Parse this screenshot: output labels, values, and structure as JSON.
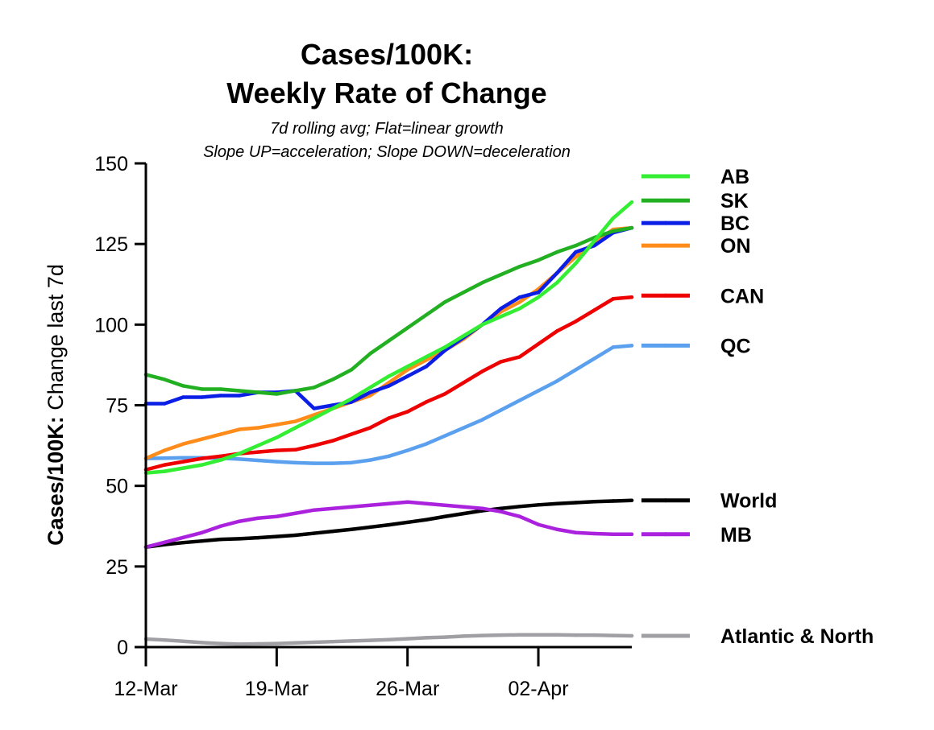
{
  "chart_data": {
    "type": "line",
    "title_line1": "Cases/100K:",
    "title_line2": "Weekly Rate of Change",
    "subtitle_line1": "7d rolling avg; Flat=linear growth",
    "subtitle_line2": "Slope UP=acceleration; Slope DOWN=deceleration",
    "ylabel_bold": "Cases/100K:",
    "ylabel_rest": " Change last 7d",
    "xlabel": "",
    "ylim": [
      0,
      150
    ],
    "y_ticks": [
      0,
      25,
      50,
      75,
      100,
      125,
      150
    ],
    "x_range": [
      0,
      26
    ],
    "x_ticks": [
      {
        "pos": 0,
        "label": "12-Mar"
      },
      {
        "pos": 7,
        "label": "19-Mar"
      },
      {
        "pos": 14,
        "label": "26-Mar"
      },
      {
        "pos": 21,
        "label": "02-Apr"
      }
    ],
    "series": [
      {
        "name": "Atlantic & North",
        "color": "#a0a0a4",
        "legend_value": 3.5,
        "legend_label_value": 3.5,
        "values": [
          2.5,
          2.2,
          1.8,
          1.4,
          1.1,
          0.9,
          1.0,
          1.1,
          1.3,
          1.5,
          1.7,
          1.9,
          2.1,
          2.3,
          2.6,
          2.9,
          3.1,
          3.4,
          3.6,
          3.7,
          3.8,
          3.8,
          3.8,
          3.7,
          3.7,
          3.6,
          3.5
        ]
      },
      {
        "name": "World",
        "color": "#000000",
        "legend_value": 45.5,
        "legend_label_value": 45.5,
        "values": [
          31,
          31.8,
          32.4,
          32.9,
          33.4,
          33.6,
          33.9,
          34.3,
          34.7,
          35.3,
          35.9,
          36.5,
          37.2,
          37.9,
          38.7,
          39.5,
          40.5,
          41.4,
          42.3,
          43.0,
          43.6,
          44.1,
          44.5,
          44.8,
          45.1,
          45.3,
          45.5
        ]
      },
      {
        "name": "MB",
        "color": "#aa22dd",
        "legend_value": 35,
        "legend_label_value": 35,
        "values": [
          31,
          32.5,
          34,
          35.5,
          37.5,
          39,
          40,
          40.5,
          41.5,
          42.5,
          43,
          43.5,
          44,
          44.5,
          45,
          44.5,
          44,
          43.5,
          43,
          42,
          40.5,
          38,
          36.5,
          35.5,
          35.2,
          35,
          35
        ]
      },
      {
        "name": "QC",
        "color": "#5aa0ee",
        "legend_value": 93.5,
        "legend_label_value": 93.5,
        "values": [
          58.5,
          58.6,
          58.7,
          58.7,
          58.6,
          58.3,
          57.9,
          57.5,
          57.2,
          57.0,
          57.0,
          57.2,
          58,
          59.2,
          61,
          63,
          65.5,
          68,
          70.5,
          73.5,
          76.5,
          79.5,
          82.5,
          86,
          89.5,
          93,
          93.5
        ]
      },
      {
        "name": "CAN",
        "color": "#ee0000",
        "legend_value": 109,
        "legend_label_value": 109,
        "values": [
          55,
          56.5,
          57.5,
          58.5,
          59.2,
          60,
          60.5,
          61,
          61.2,
          62.5,
          64,
          66,
          68,
          71,
          73,
          76,
          78.5,
          82,
          85.5,
          88.5,
          90,
          94,
          98,
          101,
          104.5,
          108,
          108.5
        ]
      },
      {
        "name": "ON",
        "color": "#ff8c1a",
        "legend_value": 124.5,
        "legend_label_value": 124.5,
        "values": [
          58.5,
          61,
          63,
          64.5,
          66,
          67.5,
          68,
          69,
          70,
          72,
          74,
          76,
          78,
          82,
          86,
          89,
          92,
          95.5,
          100,
          104,
          107,
          111,
          116,
          121,
          125.5,
          129.5,
          130
        ]
      },
      {
        "name": "BC",
        "color": "#0a1ee6",
        "legend_value": 131.5,
        "legend_label_value": 131.5,
        "values": [
          75.5,
          75.5,
          77.5,
          77.5,
          78,
          78,
          79,
          79,
          79.5,
          74,
          75,
          76,
          79,
          81,
          84,
          87,
          92,
          96,
          100,
          105,
          108.5,
          110,
          116,
          122.5,
          124.5,
          128.5,
          130
        ]
      },
      {
        "name": "SK",
        "color": "#22b022",
        "legend_value": 138.5,
        "legend_label_value": 138.5,
        "values": [
          84.5,
          83,
          81,
          80,
          80,
          79.5,
          79,
          78.5,
          79.5,
          80.5,
          83,
          86,
          91,
          95,
          99,
          103,
          107,
          110,
          113,
          115.5,
          118,
          120,
          122.5,
          124.5,
          127,
          129,
          130
        ]
      },
      {
        "name": "AB",
        "color": "#33ee33",
        "legend_value": 146,
        "legend_label_value": 146,
        "values": [
          54,
          54.5,
          55.5,
          56.5,
          58,
          60,
          62.5,
          65,
          68,
          71,
          74,
          77,
          80.5,
          84,
          87,
          90,
          93,
          96.5,
          100,
          102.5,
          105,
          108.5,
          113,
          119,
          126,
          133,
          138
        ]
      }
    ]
  }
}
